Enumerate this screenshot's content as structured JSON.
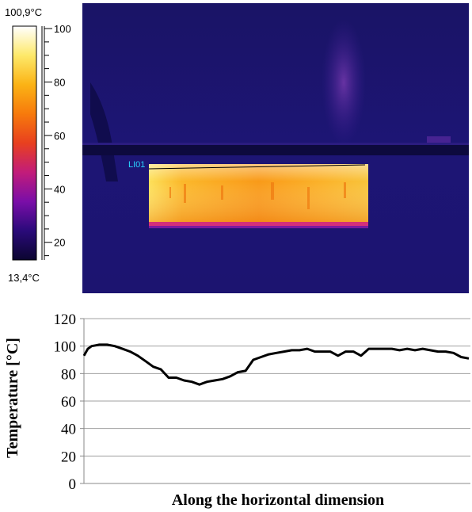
{
  "colorbar": {
    "max_label": "100,9°C",
    "min_label": "13,4°C",
    "ticks": [
      "100",
      "80",
      "60",
      "40",
      "20"
    ],
    "tick_values": [
      100,
      80,
      60,
      40,
      20
    ],
    "range": [
      13.4,
      100.9
    ],
    "palette": [
      "#0b0530",
      "#2a0a7a",
      "#7a0ea8",
      "#c21c7a",
      "#e8401f",
      "#f77a0c",
      "#fbb315",
      "#fde96a",
      "#ffffff"
    ]
  },
  "thermal_image": {
    "line_label": "LI01",
    "line_label_color": "#2ad4ff",
    "background_color": "#1e1470",
    "hot_block_color": "#f9a21a"
  },
  "chart_data": {
    "type": "line",
    "title": "",
    "xlabel": "Along the horizontal dimension",
    "ylabel": "Temperature  [°C]",
    "ylim": [
      0,
      120
    ],
    "yticks": [
      0,
      20,
      40,
      60,
      80,
      100,
      120
    ],
    "grid": true,
    "series": [
      {
        "x": [
          0,
          1,
          2,
          3,
          4,
          6,
          8,
          10,
          12,
          14,
          16,
          18,
          20,
          22,
          24,
          26,
          28,
          30,
          32,
          34,
          36,
          38,
          40,
          42,
          44,
          46,
          48,
          50,
          52,
          54,
          56,
          58,
          60,
          62,
          64,
          66,
          68,
          70,
          72,
          74,
          76,
          78,
          80,
          82,
          84,
          86,
          88,
          90,
          92,
          94,
          96,
          98,
          100
        ],
        "y": [
          93,
          98,
          100,
          100.5,
          101,
          101,
          100,
          98,
          96,
          93,
          89,
          85,
          83,
          77,
          77,
          75,
          74,
          72,
          74,
          75,
          76,
          78,
          81,
          82,
          90,
          92,
          94,
          95,
          96,
          97,
          97,
          98,
          96,
          96,
          96,
          93,
          96,
          96,
          93,
          98,
          98,
          98,
          98,
          97,
          98,
          97,
          98,
          97,
          96,
          96,
          95,
          92,
          91
        ],
        "color": "#000000"
      }
    ]
  }
}
